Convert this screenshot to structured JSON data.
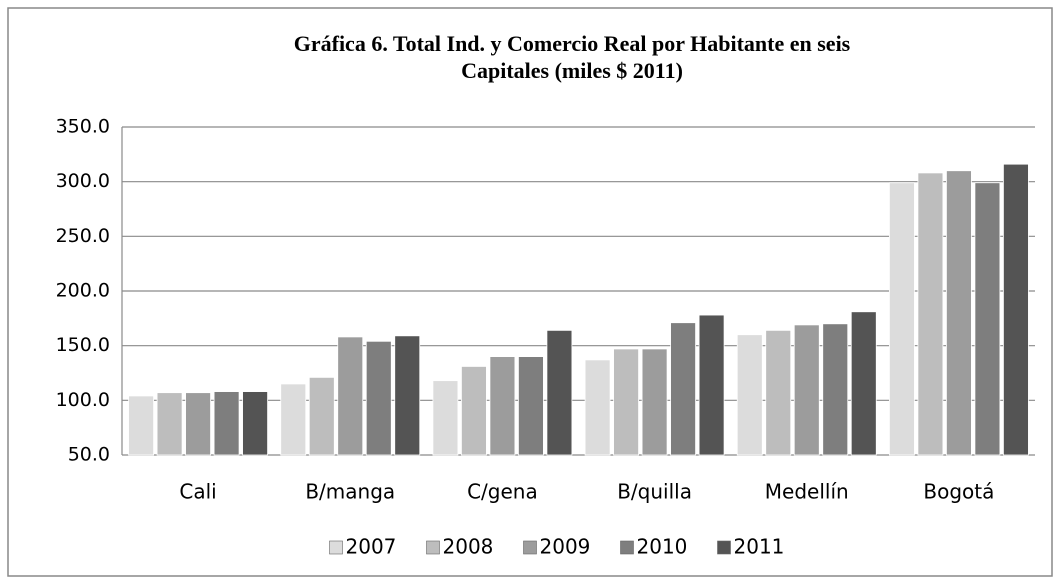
{
  "chart_data": {
    "type": "bar",
    "title": [
      "Gráfica 6. Total Ind. y Comercio Real por Habitante en seis",
      "Capitales (miles $ 2011)"
    ],
    "categories": [
      "Cali",
      "B/manga",
      "C/gena",
      "B/quilla",
      "Medellín",
      "Bogotá"
    ],
    "series": [
      {
        "name": "2007",
        "color": "#dcdcdc",
        "values": [
          104,
          115,
          118,
          137,
          160,
          299
        ]
      },
      {
        "name": "2008",
        "color": "#bdbdbd",
        "values": [
          107,
          121,
          131,
          147,
          164,
          308
        ]
      },
      {
        "name": "2009",
        "color": "#9c9c9c",
        "values": [
          107,
          158,
          140,
          147,
          169,
          310
        ]
      },
      {
        "name": "2010",
        "color": "#7e7e7e",
        "values": [
          108,
          154,
          140,
          171,
          170,
          299
        ]
      },
      {
        "name": "2011",
        "color": "#545454",
        "values": [
          108,
          159,
          164,
          178,
          181,
          316
        ]
      }
    ],
    "ylim": [
      50,
      350
    ],
    "yticks": [
      {
        "value": 50,
        "label": "50.0"
      },
      {
        "value": 100,
        "label": "100.0"
      },
      {
        "value": 150,
        "label": "150.0"
      },
      {
        "value": 200,
        "label": "200.0"
      },
      {
        "value": 250,
        "label": "250.0"
      },
      {
        "value": 300,
        "label": "300.0"
      },
      {
        "value": 350,
        "label": "350.0"
      }
    ],
    "grid": true,
    "legend": "bottom"
  }
}
